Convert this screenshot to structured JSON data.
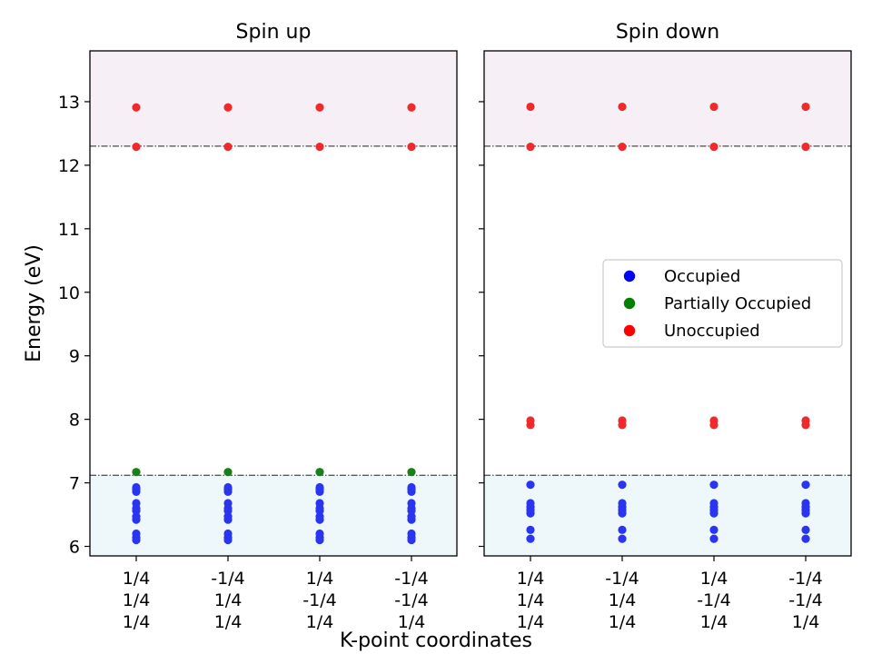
{
  "chart_data": {
    "type": "scatter",
    "xlabel": "K-point coordinates",
    "ylabel": "Energy (eV)",
    "ylim": [
      5.85,
      13.8
    ],
    "yticks": [
      6,
      7,
      8,
      9,
      10,
      11,
      12,
      13
    ],
    "categories": [
      [
        "1/4",
        "1/4",
        "1/4"
      ],
      [
        "-1/4",
        "1/4",
        "1/4"
      ],
      [
        "1/4",
        "-1/4",
        "1/4"
      ],
      [
        "-1/4",
        "-1/4",
        "1/4"
      ]
    ],
    "legend": {
      "placement": "center-right of Spin down panel",
      "entries": [
        {
          "label": "Occupied",
          "color": "#0000ff"
        },
        {
          "label": "Partially Occupied",
          "color": "#008000"
        },
        {
          "label": "Unoccupied",
          "color": "#ff0000"
        }
      ]
    },
    "colors": {
      "occupied": "#2a35f0",
      "partially_occupied": "#1a7f1a",
      "unoccupied": "#f02a2a",
      "lower_band_fill": "#eef7f9",
      "upper_band_fill": "#f6f0f6"
    },
    "panels": [
      {
        "title": "Spin up",
        "lower_line": 7.12,
        "upper_line": 12.3,
        "occupied": [
          6.1,
          6.14,
          6.2,
          6.42,
          6.47,
          6.56,
          6.6,
          6.68,
          6.86,
          6.9,
          6.93
        ],
        "partially_occupied": [
          7.17
        ],
        "unoccupied": [
          12.29,
          12.91
        ]
      },
      {
        "title": "Spin down",
        "lower_line": 7.12,
        "upper_line": 12.3,
        "occupied": [
          6.12,
          6.26,
          6.52,
          6.57,
          6.62,
          6.68,
          6.97
        ],
        "partially_occupied": [],
        "unoccupied": [
          7.91,
          7.98,
          12.29,
          12.92
        ]
      }
    ]
  }
}
